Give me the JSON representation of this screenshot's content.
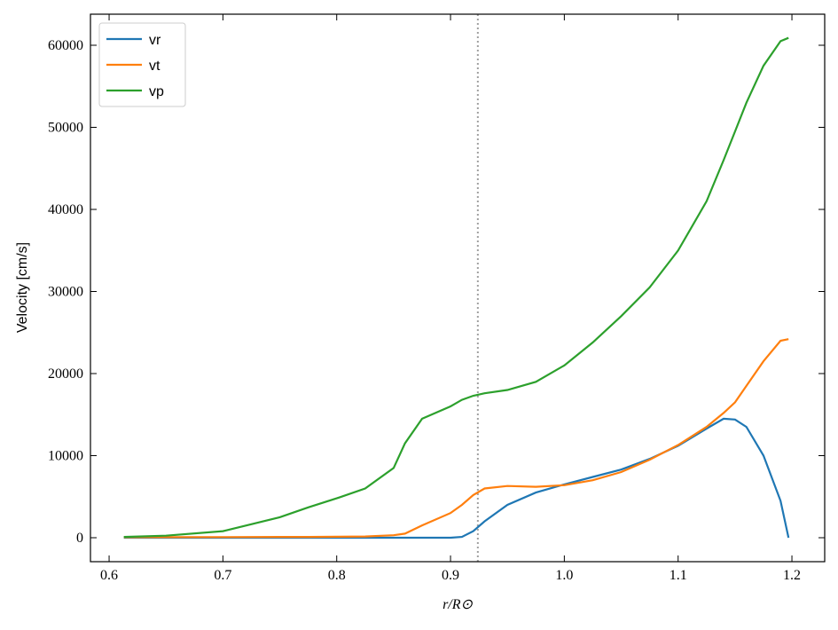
{
  "chart_data": {
    "type": "line",
    "xlabel": "r/R⊙",
    "ylabel": "Velocity [cm/s]",
    "x": [
      0.613,
      0.65,
      0.7,
      0.75,
      0.775,
      0.8,
      0.825,
      0.85,
      0.86,
      0.875,
      0.9,
      0.91,
      0.92,
      0.93,
      0.95,
      0.975,
      1.0,
      1.025,
      1.05,
      1.075,
      1.1,
      1.125,
      1.14,
      1.15,
      1.16,
      1.175,
      1.19,
      1.197
    ],
    "series": [
      {
        "name": "vr",
        "color": "#1f77b4",
        "values": [
          0,
          0,
          0,
          0,
          0,
          0,
          0,
          0,
          0,
          0,
          0,
          100,
          800,
          2000,
          4000,
          5500,
          6500,
          7400,
          8300,
          9600,
          11200,
          13300,
          14500,
          14400,
          13500,
          10000,
          4500,
          0
        ]
      },
      {
        "name": "vt",
        "color": "#ff7f0e",
        "values": [
          50,
          60,
          80,
          100,
          100,
          120,
          150,
          300,
          500,
          1500,
          3000,
          4000,
          5200,
          6000,
          6300,
          6200,
          6400,
          7000,
          8000,
          9500,
          11300,
          13500,
          15200,
          16500,
          18500,
          21500,
          24000,
          24200
        ]
      },
      {
        "name": "vp",
        "color": "#2ca02c",
        "values": [
          100,
          250,
          800,
          2500,
          3700,
          4800,
          6000,
          8500,
          11500,
          14500,
          16000,
          16800,
          17300,
          17600,
          18000,
          19000,
          21000,
          23800,
          27000,
          30500,
          35000,
          41000,
          46000,
          49500,
          53000,
          57500,
          60500,
          60900
        ]
      }
    ],
    "vline": 0.924,
    "xlim": [
      0.5836,
      1.2288
    ],
    "ylim": [
      -2919,
      63784
    ],
    "xticks": [
      0.6,
      0.7,
      0.8,
      0.9,
      {
        "value": 1.0,
        "label": "1.0"
      },
      1.1,
      1.2
    ],
    "yticks": [
      0,
      10000,
      20000,
      30000,
      40000,
      50000,
      60000
    ],
    "legend": "upper-left",
    "grid": false
  }
}
